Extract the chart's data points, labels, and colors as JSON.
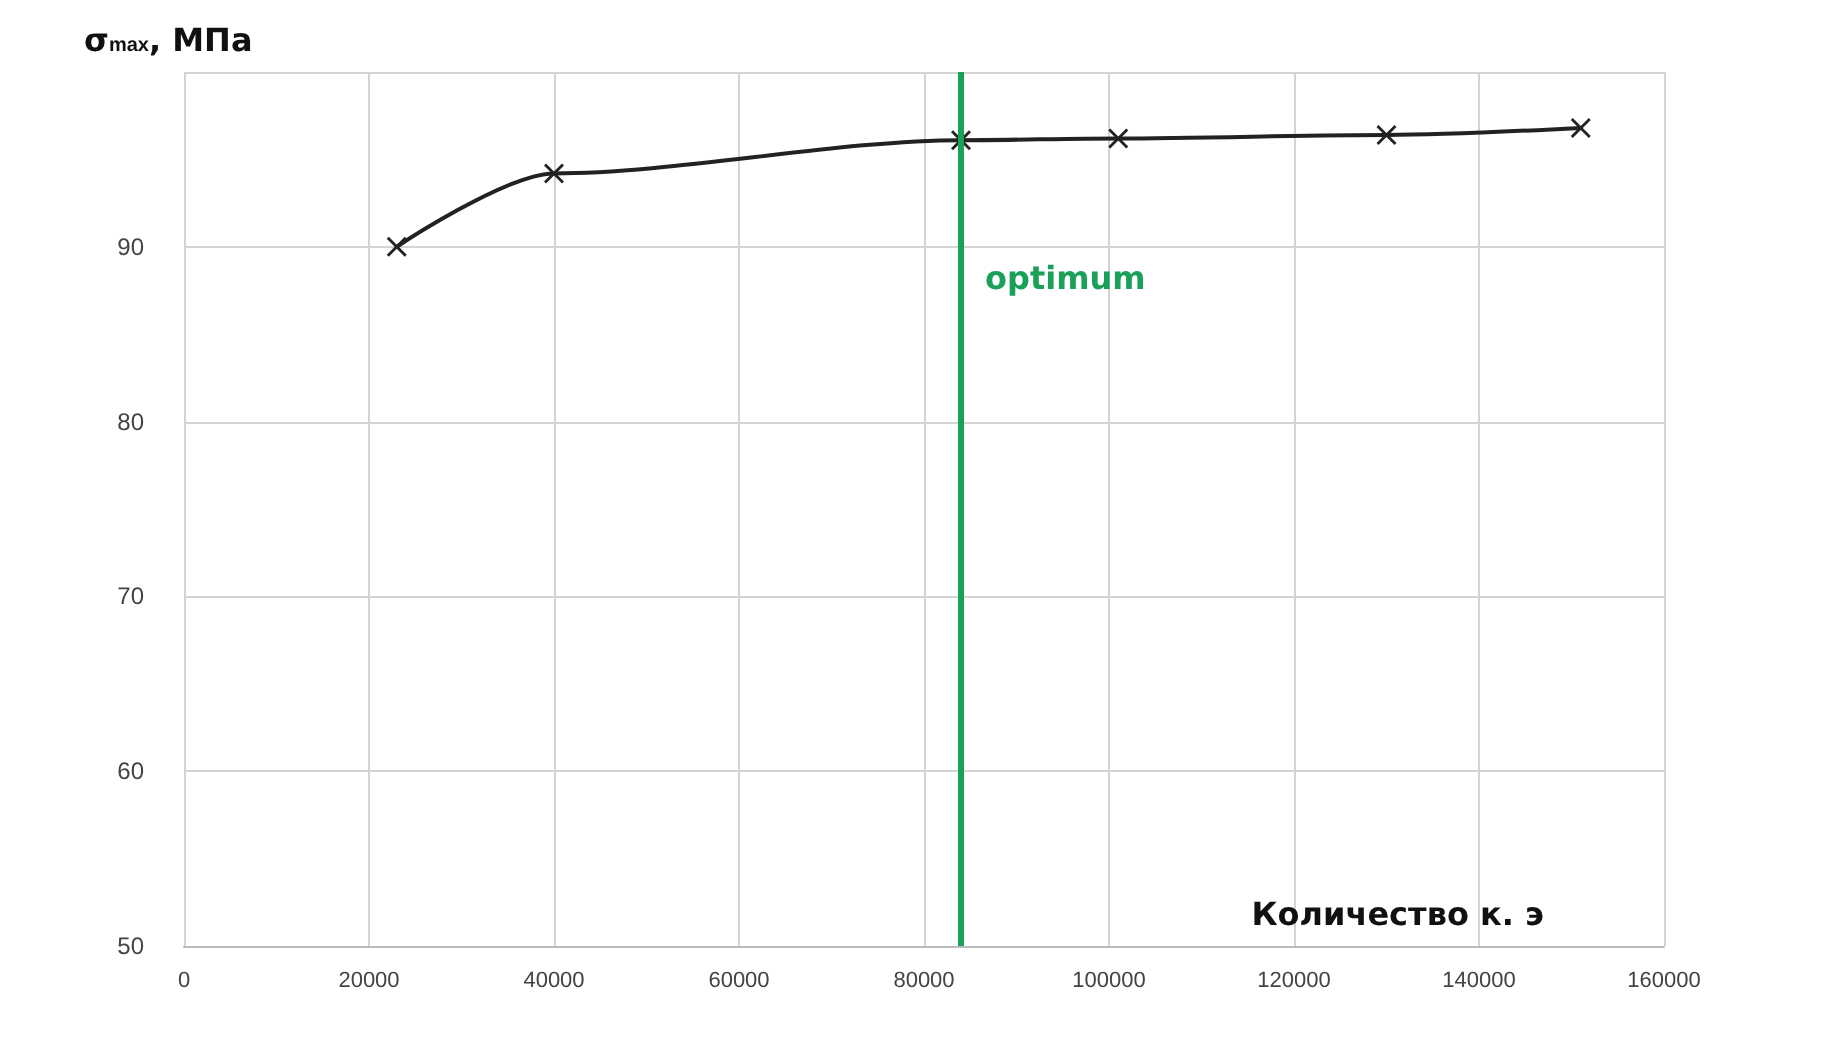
{
  "chart_data": {
    "type": "line",
    "ylabel": "σ$_{max}$, МПа",
    "xlabel": "Количество к. э",
    "x": [
      23000,
      40000,
      84000,
      101000,
      130000,
      151000
    ],
    "series": [
      {
        "color": "#222222",
        "values": [
          90,
          94.2,
          96.1,
          96.2,
          96.4,
          96.8
        ]
      }
    ],
    "xlim": [
      0,
      160000
    ],
    "xticks": [
      0,
      20000,
      40000,
      60000,
      80000,
      100000,
      120000,
      140000,
      160000
    ],
    "ylim": [
      50,
      100
    ],
    "yticks": [
      50,
      60,
      70,
      80,
      90,
      {
        "value": 100,
        "label": null
      }
    ],
    "grid": true,
    "marker": "cross",
    "line_style": "solid",
    "ref_lines": [
      {
        "axis": "x",
        "value": 84000,
        "label": "optimum",
        "color": "#1ba05a"
      }
    ]
  }
}
